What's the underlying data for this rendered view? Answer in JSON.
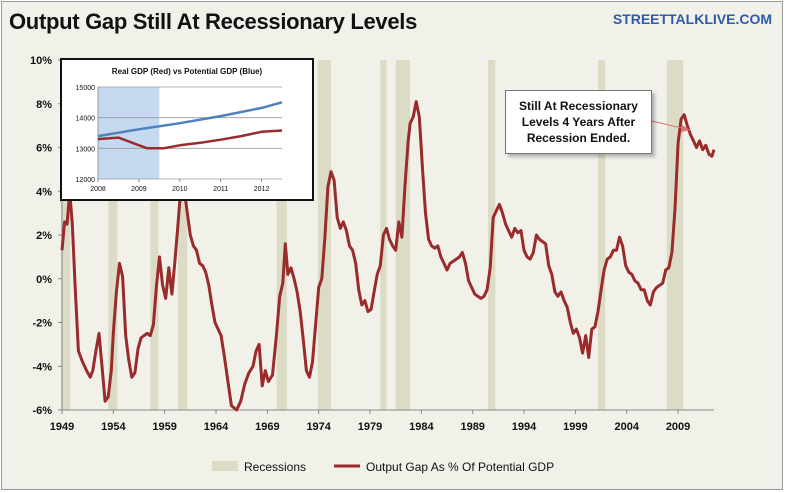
{
  "title": "Output Gap Still At Recessionary Levels",
  "brand": "STREETTALKLIVE.COM",
  "colors": {
    "line": "#9a2b2b",
    "recession": "#dcdcc6",
    "background": "#f1f1ea",
    "potential": "#4f81bd",
    "inset_shade": "#c5d9f1",
    "brand": "#2e5aa8"
  },
  "callout": {
    "lines": [
      "Still At Recessionary",
      "Levels 4 Years After",
      "Recession Ended."
    ]
  },
  "legend": {
    "recessions_label": "Recessions",
    "line_label": "Output Gap As % Of Potential GDP"
  },
  "chart_data": [
    {
      "type": "line",
      "title": "",
      "xlabel": "",
      "ylabel": "",
      "xlim": [
        1949,
        2012.5
      ],
      "ylim": [
        -6,
        10
      ],
      "x_ticks": [
        "1949",
        "1954",
        "1959",
        "1964",
        "1969",
        "1974",
        "1979",
        "1984",
        "1989",
        "1994",
        "1999",
        "2004",
        "2009"
      ],
      "y_ticks": [
        "-6%",
        "-4%",
        "-2%",
        "0%",
        "2%",
        "4%",
        "6%",
        "8%",
        "10%"
      ],
      "grid": false,
      "legend_position": "bottom",
      "recessions": [
        [
          1948.9,
          1949.8
        ],
        [
          1953.5,
          1954.4
        ],
        [
          1957.6,
          1958.4
        ],
        [
          1960.3,
          1961.2
        ],
        [
          1969.9,
          1970.9
        ],
        [
          1973.9,
          1975.2
        ],
        [
          1980.0,
          1980.6
        ],
        [
          1981.5,
          1982.9
        ],
        [
          1990.5,
          1991.2
        ],
        [
          2001.2,
          2001.9
        ],
        [
          2007.9,
          2009.5
        ]
      ],
      "series": [
        {
          "name": "Output Gap As % Of Potential GDP",
          "points": [
            [
              1949.0,
              1.3
            ],
            [
              1949.25,
              2.6
            ],
            [
              1949.5,
              2.5
            ],
            [
              1949.75,
              4.0
            ],
            [
              1950.0,
              2.5
            ],
            [
              1950.3,
              -0.5
            ],
            [
              1950.6,
              -3.3
            ],
            [
              1951.0,
              -3.8
            ],
            [
              1951.4,
              -4.2
            ],
            [
              1951.75,
              -4.5
            ],
            [
              1952.0,
              -4.2
            ],
            [
              1952.3,
              -3.3
            ],
            [
              1952.6,
              -2.5
            ],
            [
              1952.9,
              -4.0
            ],
            [
              1953.2,
              -5.6
            ],
            [
              1953.5,
              -5.4
            ],
            [
              1953.8,
              -4.2
            ],
            [
              1954.0,
              -2.5
            ],
            [
              1954.3,
              -0.6
            ],
            [
              1954.6,
              0.7
            ],
            [
              1954.9,
              0.1
            ],
            [
              1955.2,
              -2.6
            ],
            [
              1955.5,
              -3.7
            ],
            [
              1955.8,
              -4.5
            ],
            [
              1956.1,
              -4.3
            ],
            [
              1956.4,
              -3.2
            ],
            [
              1956.7,
              -2.7
            ],
            [
              1957.0,
              -2.6
            ],
            [
              1957.3,
              -2.5
            ],
            [
              1957.6,
              -2.6
            ],
            [
              1957.9,
              -2.1
            ],
            [
              1958.2,
              -0.3
            ],
            [
              1958.5,
              1.0
            ],
            [
              1958.8,
              -0.3
            ],
            [
              1959.1,
              -0.9
            ],
            [
              1959.4,
              0.5
            ],
            [
              1959.7,
              -0.7
            ],
            [
              1960.0,
              0.8
            ],
            [
              1960.3,
              2.5
            ],
            [
              1960.6,
              4.3
            ],
            [
              1960.9,
              4.1
            ],
            [
              1961.2,
              3.0
            ],
            [
              1961.5,
              2.0
            ],
            [
              1961.8,
              1.5
            ],
            [
              1962.1,
              1.3
            ],
            [
              1962.4,
              0.7
            ],
            [
              1962.7,
              0.6
            ],
            [
              1963.0,
              0.3
            ],
            [
              1963.3,
              -0.3
            ],
            [
              1963.6,
              -1.2
            ],
            [
              1963.9,
              -2.0
            ],
            [
              1964.2,
              -2.3
            ],
            [
              1964.5,
              -2.6
            ],
            [
              1964.8,
              -3.5
            ],
            [
              1965.1,
              -4.5
            ],
            [
              1965.5,
              -5.8
            ],
            [
              1966.0,
              -6.0
            ],
            [
              1966.4,
              -5.6
            ],
            [
              1966.8,
              -4.8
            ],
            [
              1967.2,
              -4.3
            ],
            [
              1967.6,
              -4.0
            ],
            [
              1967.9,
              -3.3
            ],
            [
              1968.2,
              -3.0
            ],
            [
              1968.5,
              -4.9
            ],
            [
              1968.8,
              -4.2
            ],
            [
              1969.1,
              -4.7
            ],
            [
              1969.5,
              -4.4
            ],
            [
              1969.9,
              -2.5
            ],
            [
              1970.2,
              -0.8
            ],
            [
              1970.5,
              -0.2
            ],
            [
              1970.75,
              1.6
            ],
            [
              1971.0,
              0.2
            ],
            [
              1971.3,
              0.5
            ],
            [
              1971.6,
              0.0
            ],
            [
              1971.9,
              -0.6
            ],
            [
              1972.2,
              -1.5
            ],
            [
              1972.5,
              -2.8
            ],
            [
              1972.8,
              -4.2
            ],
            [
              1973.1,
              -4.5
            ],
            [
              1973.4,
              -3.8
            ],
            [
              1973.7,
              -2.1
            ],
            [
              1974.0,
              -0.4
            ],
            [
              1974.3,
              0.0
            ],
            [
              1974.6,
              1.9
            ],
            [
              1974.9,
              4.2
            ],
            [
              1975.2,
              4.9
            ],
            [
              1975.5,
              4.5
            ],
            [
              1975.8,
              2.8
            ],
            [
              1976.1,
              2.3
            ],
            [
              1976.4,
              2.6
            ],
            [
              1976.7,
              2.2
            ],
            [
              1977.0,
              1.5
            ],
            [
              1977.3,
              1.3
            ],
            [
              1977.6,
              0.7
            ],
            [
              1977.9,
              -0.5
            ],
            [
              1978.2,
              -1.2
            ],
            [
              1978.5,
              -1.0
            ],
            [
              1978.8,
              -1.5
            ],
            [
              1979.1,
              -1.4
            ],
            [
              1979.4,
              -0.6
            ],
            [
              1979.7,
              0.2
            ],
            [
              1980.0,
              0.6
            ],
            [
              1980.3,
              2.0
            ],
            [
              1980.6,
              2.3
            ],
            [
              1980.9,
              1.8
            ],
            [
              1981.2,
              1.5
            ],
            [
              1981.5,
              1.3
            ],
            [
              1981.8,
              2.6
            ],
            [
              1982.1,
              1.9
            ],
            [
              1982.4,
              4.2
            ],
            [
              1982.7,
              6.2
            ],
            [
              1982.9,
              7.1
            ],
            [
              1983.2,
              7.4
            ],
            [
              1983.5,
              8.1
            ],
            [
              1983.8,
              7.4
            ],
            [
              1984.1,
              5.1
            ],
            [
              1984.4,
              3.0
            ],
            [
              1984.7,
              1.8
            ],
            [
              1985.0,
              1.5
            ],
            [
              1985.3,
              1.4
            ],
            [
              1985.6,
              1.5
            ],
            [
              1985.9,
              1.0
            ],
            [
              1986.2,
              0.7
            ],
            [
              1986.5,
              0.4
            ],
            [
              1986.8,
              0.7
            ],
            [
              1987.1,
              0.8
            ],
            [
              1987.4,
              0.9
            ],
            [
              1987.7,
              1.0
            ],
            [
              1988.0,
              1.2
            ],
            [
              1988.3,
              0.7
            ],
            [
              1988.6,
              -0.1
            ],
            [
              1988.9,
              -0.4
            ],
            [
              1989.2,
              -0.7
            ],
            [
              1989.5,
              -0.8
            ],
            [
              1989.8,
              -0.9
            ],
            [
              1990.1,
              -0.8
            ],
            [
              1990.4,
              -0.5
            ],
            [
              1990.7,
              0.5
            ],
            [
              1991.0,
              2.8
            ],
            [
              1991.3,
              3.1
            ],
            [
              1991.6,
              3.4
            ],
            [
              1991.9,
              3.0
            ],
            [
              1992.2,
              2.5
            ],
            [
              1992.5,
              2.2
            ],
            [
              1992.8,
              1.9
            ],
            [
              1993.1,
              2.3
            ],
            [
              1993.4,
              2.1
            ],
            [
              1993.7,
              2.2
            ],
            [
              1994.0,
              1.3
            ],
            [
              1994.3,
              1.0
            ],
            [
              1994.6,
              0.9
            ],
            [
              1994.9,
              1.2
            ],
            [
              1995.2,
              2.0
            ],
            [
              1995.5,
              1.8
            ],
            [
              1995.8,
              1.7
            ],
            [
              1996.1,
              1.6
            ],
            [
              1996.4,
              0.6
            ],
            [
              1996.7,
              0.2
            ],
            [
              1997.0,
              -0.6
            ],
            [
              1997.3,
              -0.8
            ],
            [
              1997.6,
              -0.6
            ],
            [
              1997.9,
              -1.0
            ],
            [
              1998.2,
              -1.3
            ],
            [
              1998.5,
              -2.0
            ],
            [
              1998.8,
              -2.5
            ],
            [
              1999.1,
              -2.3
            ],
            [
              1999.4,
              -2.7
            ],
            [
              1999.7,
              -3.4
            ],
            [
              2000.0,
              -2.6
            ],
            [
              2000.3,
              -3.6
            ],
            [
              2000.6,
              -2.3
            ],
            [
              2000.9,
              -2.2
            ],
            [
              2001.2,
              -1.5
            ],
            [
              2001.5,
              -0.5
            ],
            [
              2001.8,
              0.4
            ],
            [
              2002.1,
              0.9
            ],
            [
              2002.4,
              1.0
            ],
            [
              2002.7,
              1.3
            ],
            [
              2003.0,
              1.3
            ],
            [
              2003.3,
              1.9
            ],
            [
              2003.6,
              1.5
            ],
            [
              2003.9,
              0.6
            ],
            [
              2004.2,
              0.3
            ],
            [
              2004.5,
              0.2
            ],
            [
              2004.8,
              -0.1
            ],
            [
              2005.1,
              -0.2
            ],
            [
              2005.4,
              -0.5
            ],
            [
              2005.7,
              -0.5
            ],
            [
              2006.0,
              -1.0
            ],
            [
              2006.3,
              -1.2
            ],
            [
              2006.6,
              -0.6
            ],
            [
              2006.9,
              -0.4
            ],
            [
              2007.2,
              -0.3
            ],
            [
              2007.5,
              -0.2
            ],
            [
              2007.8,
              0.4
            ],
            [
              2008.1,
              0.5
            ],
            [
              2008.4,
              1.2
            ],
            [
              2008.7,
              3.2
            ],
            [
              2009.0,
              6.2
            ],
            [
              2009.3,
              7.3
            ],
            [
              2009.6,
              7.5
            ],
            [
              2009.9,
              7.0
            ],
            [
              2010.2,
              6.6
            ],
            [
              2010.5,
              6.3
            ],
            [
              2010.8,
              6.0
            ],
            [
              2011.1,
              6.3
            ],
            [
              2011.4,
              5.9
            ],
            [
              2011.7,
              6.1
            ],
            [
              2012.0,
              5.7
            ],
            [
              2012.3,
              5.6
            ],
            [
              2012.5,
              5.9
            ]
          ]
        }
      ]
    },
    {
      "type": "line",
      "title": "Real GDP (Red) vs Potential GDP (Blue)",
      "xlim": [
        2008,
        2012.5
      ],
      "ylim": [
        12000,
        15000
      ],
      "x_ticks": [
        "2008",
        "2009",
        "2010",
        "2011",
        "2012"
      ],
      "y_ticks": [
        "12000",
        "13000",
        "14000",
        "15000"
      ],
      "shaded": [
        2008,
        2009.5
      ],
      "series": [
        {
          "color": "#4f81bd",
          "points": [
            [
              2008.0,
              13400
            ],
            [
              2009.0,
              13620
            ],
            [
              2010.0,
              13820
            ],
            [
              2011.0,
              14050
            ],
            [
              2012.0,
              14320
            ],
            [
              2012.5,
              14500
            ]
          ]
        },
        {
          "color": "#9a2b2b",
          "points": [
            [
              2008.0,
              13300
            ],
            [
              2008.5,
              13350
            ],
            [
              2008.8,
              13200
            ],
            [
              2009.2,
              13000
            ],
            [
              2009.6,
              13000
            ],
            [
              2010.0,
              13100
            ],
            [
              2010.5,
              13180
            ],
            [
              2011.0,
              13280
            ],
            [
              2011.5,
              13400
            ],
            [
              2012.0,
              13540
            ],
            [
              2012.5,
              13580
            ]
          ]
        }
      ]
    }
  ]
}
